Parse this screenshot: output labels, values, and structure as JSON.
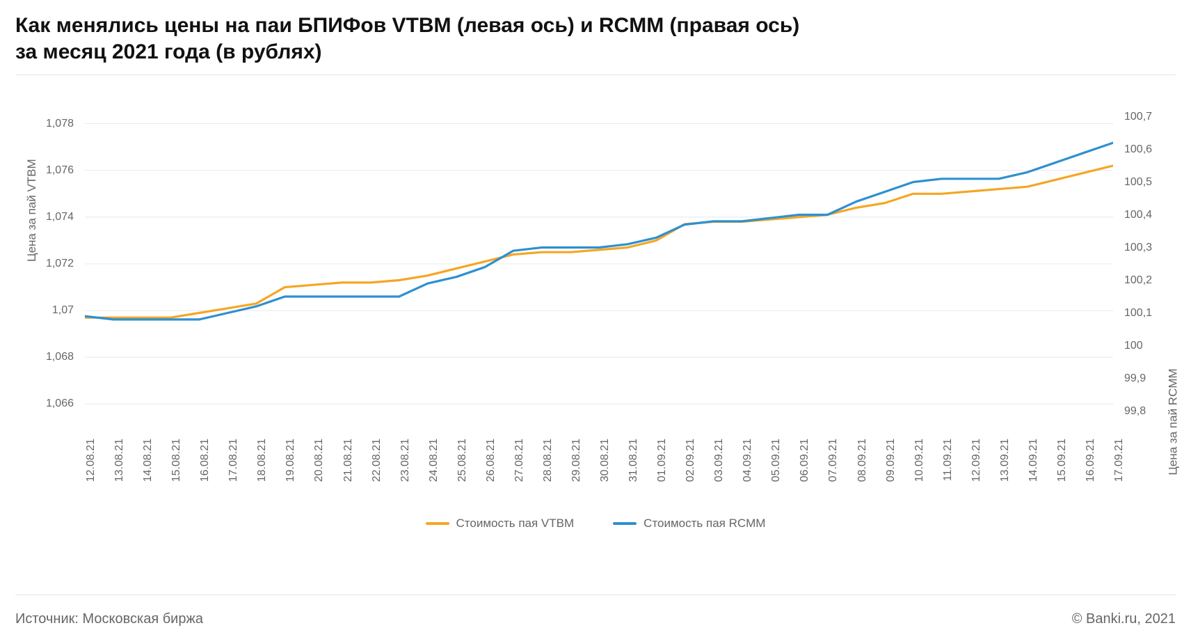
{
  "title_line1": "Как менялись цены на паи БПИФов VTBM (левая ось) и RCMM (правая ось)",
  "title_line2": "за месяц 2021 года (в рублях)",
  "source_label": "Источник: Московская биржа",
  "copyright": "© Banki.ru, 2021",
  "chart": {
    "type": "line",
    "background_color": "#ffffff",
    "grid_color": "#e8e8e8",
    "axis_text_color": "#666666",
    "title_fontsize": 30,
    "tick_fontsize": 16,
    "axis_title_fontsize": 17,
    "line_width": 3.2,
    "x": {
      "categories": [
        "12.08.21",
        "13.08.21",
        "14.08.21",
        "15.08.21",
        "16.08.21",
        "17.08.21",
        "18.08.21",
        "19.08.21",
        "20.08.21",
        "21.08.21",
        "22.08.21",
        "23.08.21",
        "24.08.21",
        "25.08.21",
        "26.08.21",
        "27.08.21",
        "28.08.21",
        "29.08.21",
        "30.08.21",
        "31.08.21",
        "01.09.21",
        "02.09.21",
        "03.09.21",
        "04.09.21",
        "05.09.21",
        "06.09.21",
        "07.09.21",
        "08.09.21",
        "09.09.21",
        "10.09.21",
        "11.09.21",
        "12.09.21",
        "13.09.21",
        "14.09.21",
        "15.09.21",
        "16.09.21",
        "17.09.21"
      ]
    },
    "y_left": {
      "title": "Цена за пай VTBM",
      "min": 1.065,
      "max": 1.079,
      "ticks": [
        1.066,
        1.068,
        1.07,
        1.072,
        1.074,
        1.076,
        1.078
      ],
      "tick_labels": [
        "1,066",
        "1,068",
        "1,07",
        "1,072",
        "1,074",
        "1,076",
        "1,078"
      ]
    },
    "y_right": {
      "title": "Цена за пай RCMM",
      "min": 99.75,
      "max": 100.75,
      "ticks": [
        99.8,
        99.9,
        100.0,
        100.1,
        100.2,
        100.3,
        100.4,
        100.5,
        100.6,
        100.7
      ],
      "tick_labels": [
        "99,8",
        "99,9",
        "100",
        "100,1",
        "100,2",
        "100,3",
        "100,4",
        "100,5",
        "100,6",
        "100,7"
      ]
    },
    "series": [
      {
        "name": "Стоимость пая VTBM",
        "axis": "left",
        "color": "#f5a623",
        "values": [
          1.0697,
          1.0697,
          1.0697,
          1.0697,
          1.0699,
          1.0701,
          1.0703,
          1.071,
          1.0711,
          1.0712,
          1.0712,
          1.0713,
          1.0715,
          1.0718,
          1.0721,
          1.0724,
          1.0725,
          1.0725,
          1.0726,
          1.0727,
          1.073,
          1.0737,
          1.0738,
          1.0738,
          1.0739,
          1.074,
          1.0741,
          1.0744,
          1.0746,
          1.075,
          1.075,
          1.0751,
          1.0752,
          1.0753,
          1.0756,
          1.0759,
          1.0762
        ]
      },
      {
        "name": "Стоимость пая RCMM",
        "axis": "right",
        "color": "#2e90d1",
        "values": [
          100.09,
          100.08,
          100.08,
          100.08,
          100.08,
          100.1,
          100.12,
          100.15,
          100.15,
          100.15,
          100.15,
          100.15,
          100.19,
          100.21,
          100.24,
          100.29,
          100.3,
          100.3,
          100.3,
          100.31,
          100.33,
          100.37,
          100.38,
          100.38,
          100.39,
          100.4,
          100.4,
          100.44,
          100.47,
          100.5,
          100.51,
          100.51,
          100.51,
          100.53,
          100.56,
          100.59,
          100.62
        ]
      }
    ],
    "legend": [
      {
        "label": "Стоимость пая VTBM",
        "color": "#f5a623"
      },
      {
        "label": "Стоимость пая RCMM",
        "color": "#2e90d1"
      }
    ]
  }
}
